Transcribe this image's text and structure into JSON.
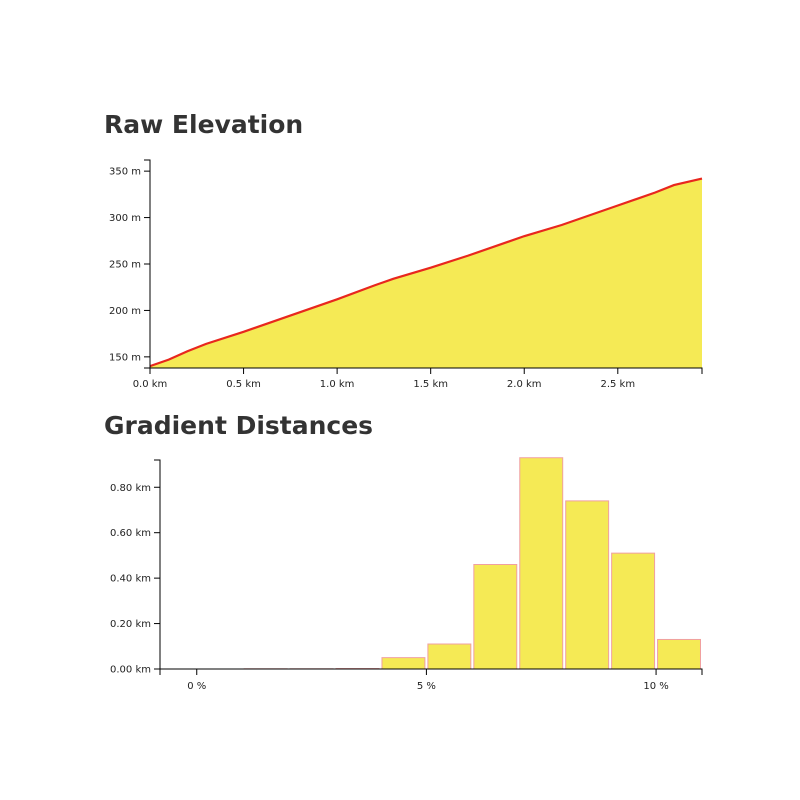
{
  "chart_data": [
    {
      "type": "area",
      "title": "Raw Elevation",
      "x_unit": "km",
      "y_unit": "m",
      "xlim": [
        0,
        2.95
      ],
      "ylim": [
        138,
        362
      ],
      "x_ticks": [
        0.0,
        0.5,
        1.0,
        1.5,
        2.0,
        2.5
      ],
      "x_tick_labels": [
        "0.0 km",
        "0.5 km",
        "1.0 km",
        "1.5 km",
        "2.0 km",
        "2.5 km"
      ],
      "y_ticks": [
        150,
        200,
        250,
        300,
        350
      ],
      "y_tick_labels": [
        "150 m",
        "200 m",
        "250 m",
        "300 m",
        "350 m"
      ],
      "x": [
        0.0,
        0.1,
        0.2,
        0.3,
        0.5,
        0.7,
        1.0,
        1.2,
        1.3,
        1.5,
        1.7,
        2.0,
        2.2,
        2.5,
        2.7,
        2.8,
        2.95
      ],
      "y": [
        140,
        147,
        156,
        164,
        177,
        191,
        212,
        227,
        234,
        246,
        259,
        280,
        292,
        313,
        327,
        335,
        342
      ],
      "fill_color": "#f5ea55",
      "line_color": "#e8271e"
    },
    {
      "type": "bar",
      "title": "Gradient Distances",
      "x_unit": "%",
      "y_unit": "km",
      "xlim": [
        -0.8,
        11.0
      ],
      "ylim": [
        0,
        0.92
      ],
      "x_ticks": [
        0,
        5,
        10
      ],
      "x_tick_labels": [
        "0 %",
        "5 %",
        "10 %"
      ],
      "y_ticks": [
        0,
        0.2,
        0.4,
        0.6,
        0.8
      ],
      "y_tick_labels": [
        "0.00 km",
        "0.20 km",
        "0.40 km",
        "0.60 km",
        "0.80 km"
      ],
      "bin_width": 1,
      "bin_centers": [
        0.5,
        1.5,
        2.5,
        3.5,
        4.5,
        5.5,
        6.5,
        7.5,
        8.5,
        9.5,
        10.5
      ],
      "values": [
        0,
        0.001,
        0.001,
        0.002,
        0.05,
        0.11,
        0.46,
        0.93,
        0.74,
        0.51,
        0.13
      ],
      "fill_color": "#f5ea55",
      "stroke_color": "#f0a0a0"
    }
  ]
}
